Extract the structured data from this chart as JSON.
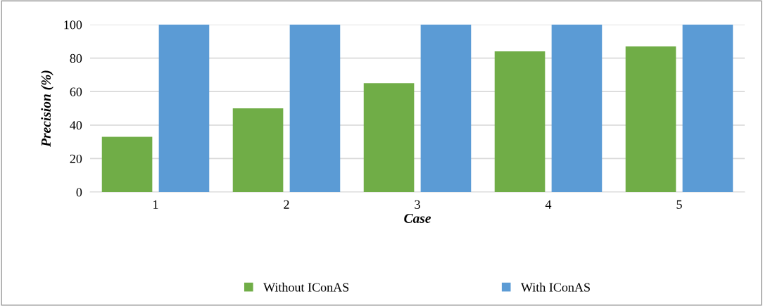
{
  "chart_data": {
    "type": "bar",
    "xlabel": "Case",
    "ylabel": "Precision (%)",
    "categories": [
      "1",
      "2",
      "3",
      "4",
      "5"
    ],
    "series": [
      {
        "name": "Without IConAS",
        "color": "#70ad47",
        "values": [
          33,
          50,
          65,
          84,
          87
        ]
      },
      {
        "name": "With IConAS",
        "color": "#5b9bd5",
        "values": [
          100,
          100,
          100,
          100,
          100
        ]
      }
    ],
    "ylim": [
      0,
      100
    ],
    "yticks": [
      0,
      20,
      40,
      60,
      80,
      100
    ],
    "grid": "y",
    "legend": "bottom"
  }
}
